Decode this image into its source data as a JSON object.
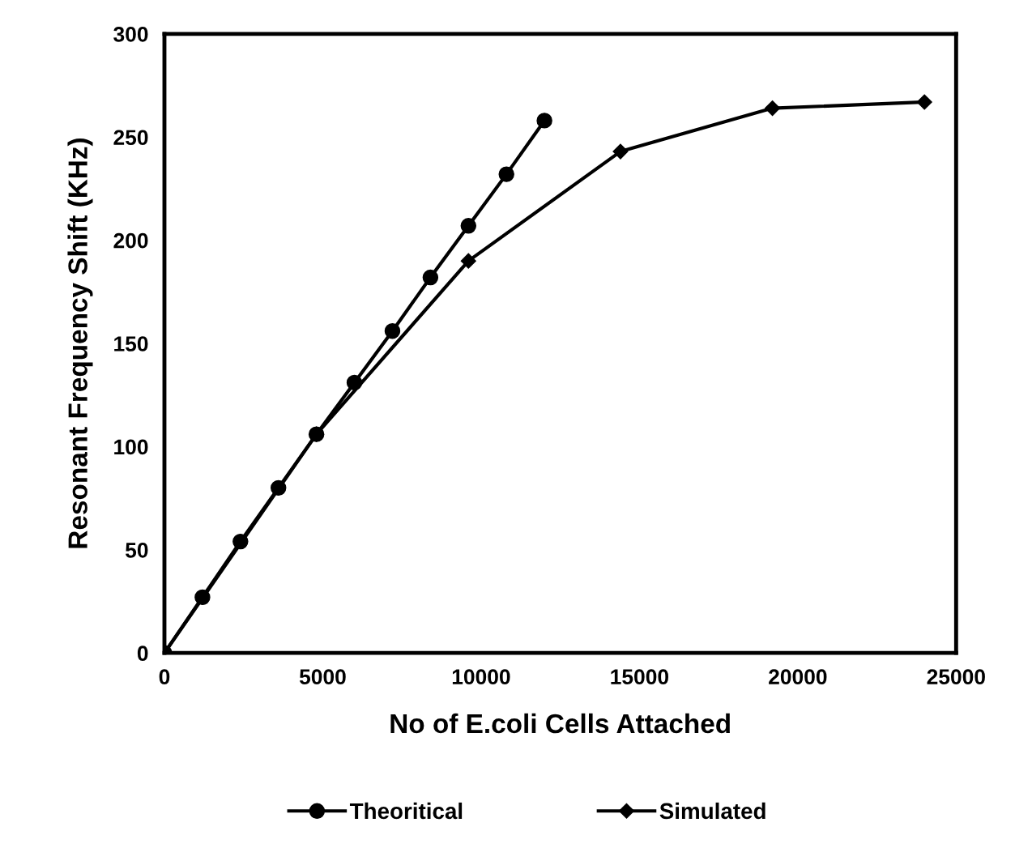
{
  "chart_data": {
    "type": "line",
    "xlabel": "No of E.coli Cells Attached",
    "ylabel": "Resonant Frequency Shift (KHz)",
    "xlim": [
      0,
      25000
    ],
    "ylim": [
      0,
      300
    ],
    "xticks": [
      0,
      5000,
      10000,
      15000,
      20000,
      25000
    ],
    "yticks": [
      0,
      50,
      100,
      150,
      200,
      250,
      300
    ],
    "grid": false,
    "legend": "bottom",
    "line_style": "solid",
    "series": [
      {
        "name": "Theoritical",
        "color": "#000000",
        "marker": "circle",
        "x": [
          0,
          1200,
          2400,
          3600,
          4800,
          6000,
          7200,
          8400,
          9600,
          10800,
          12000
        ],
        "values": [
          0,
          27,
          54,
          80,
          106,
          131,
          156,
          182,
          207,
          232,
          258
        ]
      },
      {
        "name": "Simulated",
        "color": "#000000",
        "marker": "diamond",
        "x": [
          0,
          4800,
          9600,
          14400,
          19200,
          24000
        ],
        "values": [
          0,
          106,
          190,
          243,
          264,
          267
        ]
      }
    ]
  }
}
